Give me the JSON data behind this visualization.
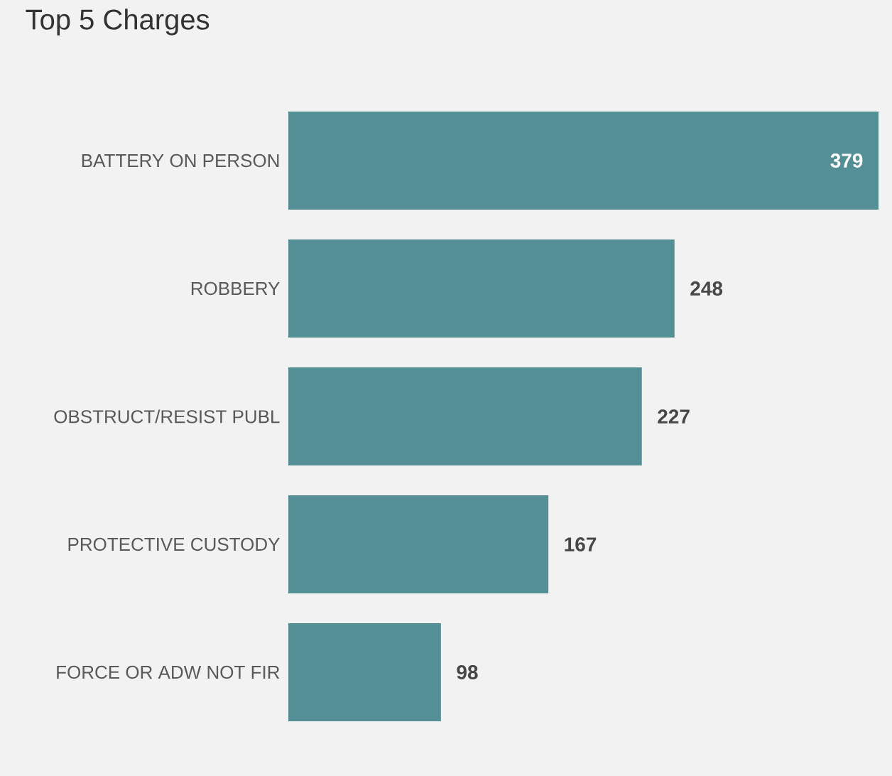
{
  "chart_data": {
    "type": "bar",
    "orientation": "horizontal",
    "title": "Top 5 Charges",
    "categories": [
      "BATTERY ON PERSON",
      "ROBBERY",
      "OBSTRUCT/RESIST PUBL",
      "PROTECTIVE CUSTODY",
      "FORCE OR ADW NOT FIR"
    ],
    "values": [
      379,
      248,
      227,
      167,
      98
    ],
    "color": "#548f96",
    "data_labels": true
  }
}
